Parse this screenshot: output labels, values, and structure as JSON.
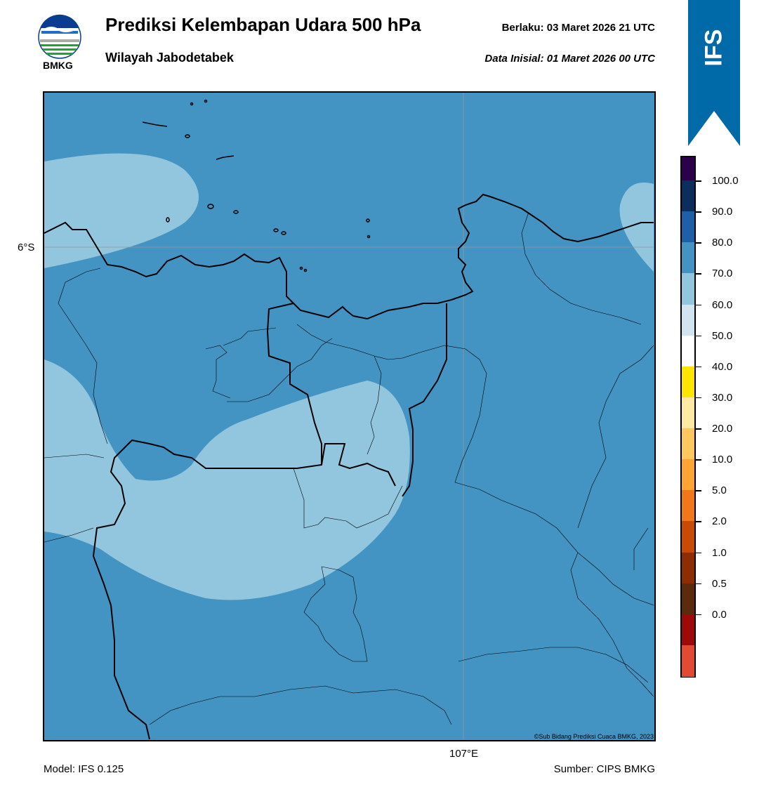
{
  "header": {
    "title": "Prediksi Kelembapan Udara 500 hPa",
    "subtitle": "Wilayah Jabodetabek",
    "valid_time": "Berlaku:  03 Maret 2026 21 UTC",
    "initial_time": "Data Inisial:  01 Maret 2026 00 UTC",
    "logo_text": "BMKG"
  },
  "map": {
    "lat_label": "6°S",
    "lon_label": "107°E",
    "copyright": "©Sub Bidang Prediksi Cuaca BMKG, 2023"
  },
  "footer": {
    "model": "Model: IFS 0.125",
    "source": "Sumber: CIPS BMKG"
  },
  "badge": {
    "label": "IFS",
    "color": "#0069a8"
  },
  "legend": {
    "ticks": [
      "100.0",
      "90.0",
      "80.0",
      "70.0",
      "60.0",
      "50.0",
      "40.0",
      "30.0",
      "20.0",
      "10.0",
      "5.0",
      "2.0",
      "1.0",
      "0.5",
      "0.0"
    ],
    "colors_top_to_bottom": [
      "#2d004b",
      "#0b2e5c",
      "#1f5fa8",
      "#4393c3",
      "#92c5de",
      "#d1e5f0",
      "#ffffff",
      "#ffe400",
      "#ffe9a3",
      "#ffc85e",
      "#ffa432",
      "#f0781a",
      "#c84b05",
      "#8c2d04",
      "#5c2a0c",
      "#9e0a0a",
      "#e34a33"
    ]
  },
  "colors": {
    "humidity_70_80": "#4393c3",
    "humidity_60_70": "#92c5de"
  }
}
